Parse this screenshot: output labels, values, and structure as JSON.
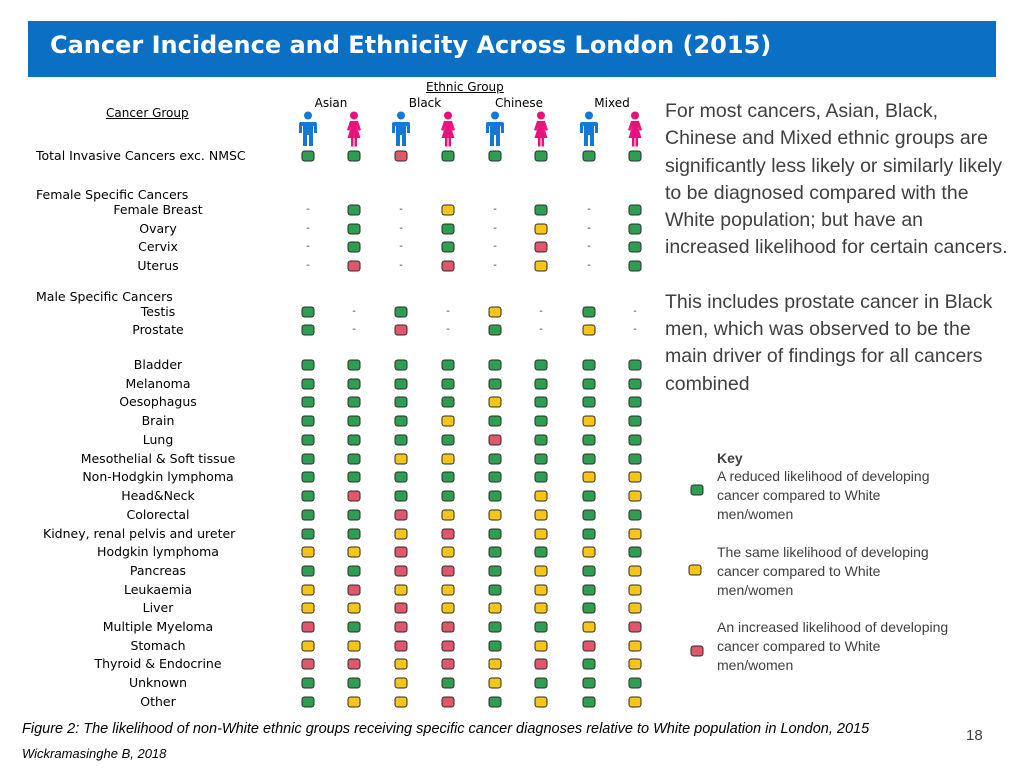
{
  "title": "Cancer Incidence and Ethnicity Across London (2015)",
  "table": {
    "ethnic_group_label": "Ethnic Group",
    "cancer_group_label": "Cancer Group",
    "groups": [
      "Asian",
      "Black",
      "Chinese",
      "Mixed"
    ],
    "sex_icons": [
      "male-icon",
      "female-icon"
    ],
    "colors": {
      "reduced": "#2e9e50",
      "same": "#f5c518",
      "increased": "#e0566a",
      "male": "#1479d6",
      "female": "#e8127c"
    },
    "sections": {
      "female_specific": "Female Specific Cancers",
      "male_specific": "Male Specific Cancers"
    },
    "rows": [
      {
        "label": "Total Invasive Cancers exc. NMSC",
        "values": [
          "G",
          "G",
          "R",
          "G",
          "G",
          "G",
          "G",
          "G"
        ]
      },
      {
        "label": "Female Breast",
        "values": [
          "-",
          "G",
          "-",
          "Y",
          "-",
          "G",
          "-",
          "G"
        ]
      },
      {
        "label": "Ovary",
        "values": [
          "-",
          "G",
          "-",
          "G",
          "-",
          "Y",
          "-",
          "G"
        ]
      },
      {
        "label": "Cervix",
        "values": [
          "-",
          "G",
          "-",
          "G",
          "-",
          "R",
          "-",
          "G"
        ]
      },
      {
        "label": "Uterus",
        "values": [
          "-",
          "R",
          "-",
          "R",
          "-",
          "Y",
          "-",
          "G"
        ]
      },
      {
        "label": "Testis",
        "values": [
          "G",
          "-",
          "G",
          "-",
          "Y",
          "-",
          "G",
          "-"
        ]
      },
      {
        "label": "Prostate",
        "values": [
          "G",
          "-",
          "R",
          "-",
          "G",
          "-",
          "Y",
          "-"
        ]
      },
      {
        "label": "Bladder",
        "values": [
          "G",
          "G",
          "G",
          "G",
          "G",
          "G",
          "G",
          "G"
        ]
      },
      {
        "label": "Melanoma",
        "values": [
          "G",
          "G",
          "G",
          "G",
          "G",
          "G",
          "G",
          "G"
        ]
      },
      {
        "label": "Oesophagus",
        "values": [
          "G",
          "G",
          "G",
          "G",
          "Y",
          "G",
          "G",
          "G"
        ]
      },
      {
        "label": "Brain",
        "values": [
          "G",
          "G",
          "G",
          "Y",
          "G",
          "G",
          "Y",
          "G"
        ]
      },
      {
        "label": "Lung",
        "values": [
          "G",
          "G",
          "G",
          "G",
          "R",
          "G",
          "G",
          "G"
        ]
      },
      {
        "label": "Mesothelial & Soft tissue",
        "values": [
          "G",
          "G",
          "Y",
          "Y",
          "G",
          "G",
          "G",
          "G"
        ]
      },
      {
        "label": "Non-Hodgkin lymphoma",
        "values": [
          "G",
          "G",
          "G",
          "G",
          "G",
          "G",
          "Y",
          "Y"
        ]
      },
      {
        "label": "Head&Neck",
        "values": [
          "G",
          "R",
          "G",
          "G",
          "G",
          "Y",
          "G",
          "Y"
        ]
      },
      {
        "label": "Colorectal",
        "values": [
          "G",
          "G",
          "R",
          "Y",
          "Y",
          "Y",
          "G",
          "G"
        ]
      },
      {
        "label": "Kidney, renal pelvis and ureter",
        "values": [
          "G",
          "G",
          "Y",
          "R",
          "G",
          "Y",
          "G",
          "Y"
        ]
      },
      {
        "label": "Hodgkin lymphoma",
        "values": [
          "Y",
          "Y",
          "R",
          "Y",
          "G",
          "G",
          "Y",
          "G"
        ]
      },
      {
        "label": "Pancreas",
        "values": [
          "G",
          "G",
          "R",
          "R",
          "G",
          "Y",
          "G",
          "Y"
        ]
      },
      {
        "label": "Leukaemia",
        "values": [
          "Y",
          "R",
          "Y",
          "Y",
          "G",
          "Y",
          "G",
          "Y"
        ]
      },
      {
        "label": "Liver",
        "values": [
          "Y",
          "Y",
          "R",
          "Y",
          "Y",
          "Y",
          "G",
          "Y"
        ]
      },
      {
        "label": "Multiple Myeloma",
        "values": [
          "R",
          "G",
          "R",
          "R",
          "G",
          "G",
          "Y",
          "R"
        ]
      },
      {
        "label": "Stomach",
        "values": [
          "Y",
          "Y",
          "R",
          "R",
          "G",
          "Y",
          "R",
          "Y"
        ]
      },
      {
        "label": "Thyroid & Endocrine",
        "values": [
          "R",
          "R",
          "Y",
          "R",
          "Y",
          "R",
          "G",
          "Y"
        ]
      },
      {
        "label": "Unknown",
        "values": [
          "G",
          "G",
          "Y",
          "G",
          "Y",
          "G",
          "G",
          "G"
        ]
      },
      {
        "label": "Other",
        "values": [
          "G",
          "Y",
          "Y",
          "R",
          "G",
          "Y",
          "G",
          "Y"
        ]
      }
    ]
  },
  "description": {
    "p1": "For most cancers, Asian, Black, Chinese and Mixed ethnic groups are significantly less likely or similarly likely to be diagnosed compared with the White population; but have an increased likelihood for certain cancers.",
    "p2": "This includes prostate cancer in Black men, which was observed to be the main driver of findings for all cancers combined"
  },
  "key": {
    "title": "Key",
    "reduced": "A reduced likelihood of developing cancer compared to White men/women",
    "same": "The same likelihood of developing cancer compared to White men/women",
    "increased": "An increased likelihood of developing cancer compared to White men/women"
  },
  "caption": "Figure 2: The likelihood of non-White ethnic groups receiving specific cancer diagnoses relative to White population in London, 2015",
  "author": "Wickramasinghe B, 2018",
  "page_number": "18"
}
